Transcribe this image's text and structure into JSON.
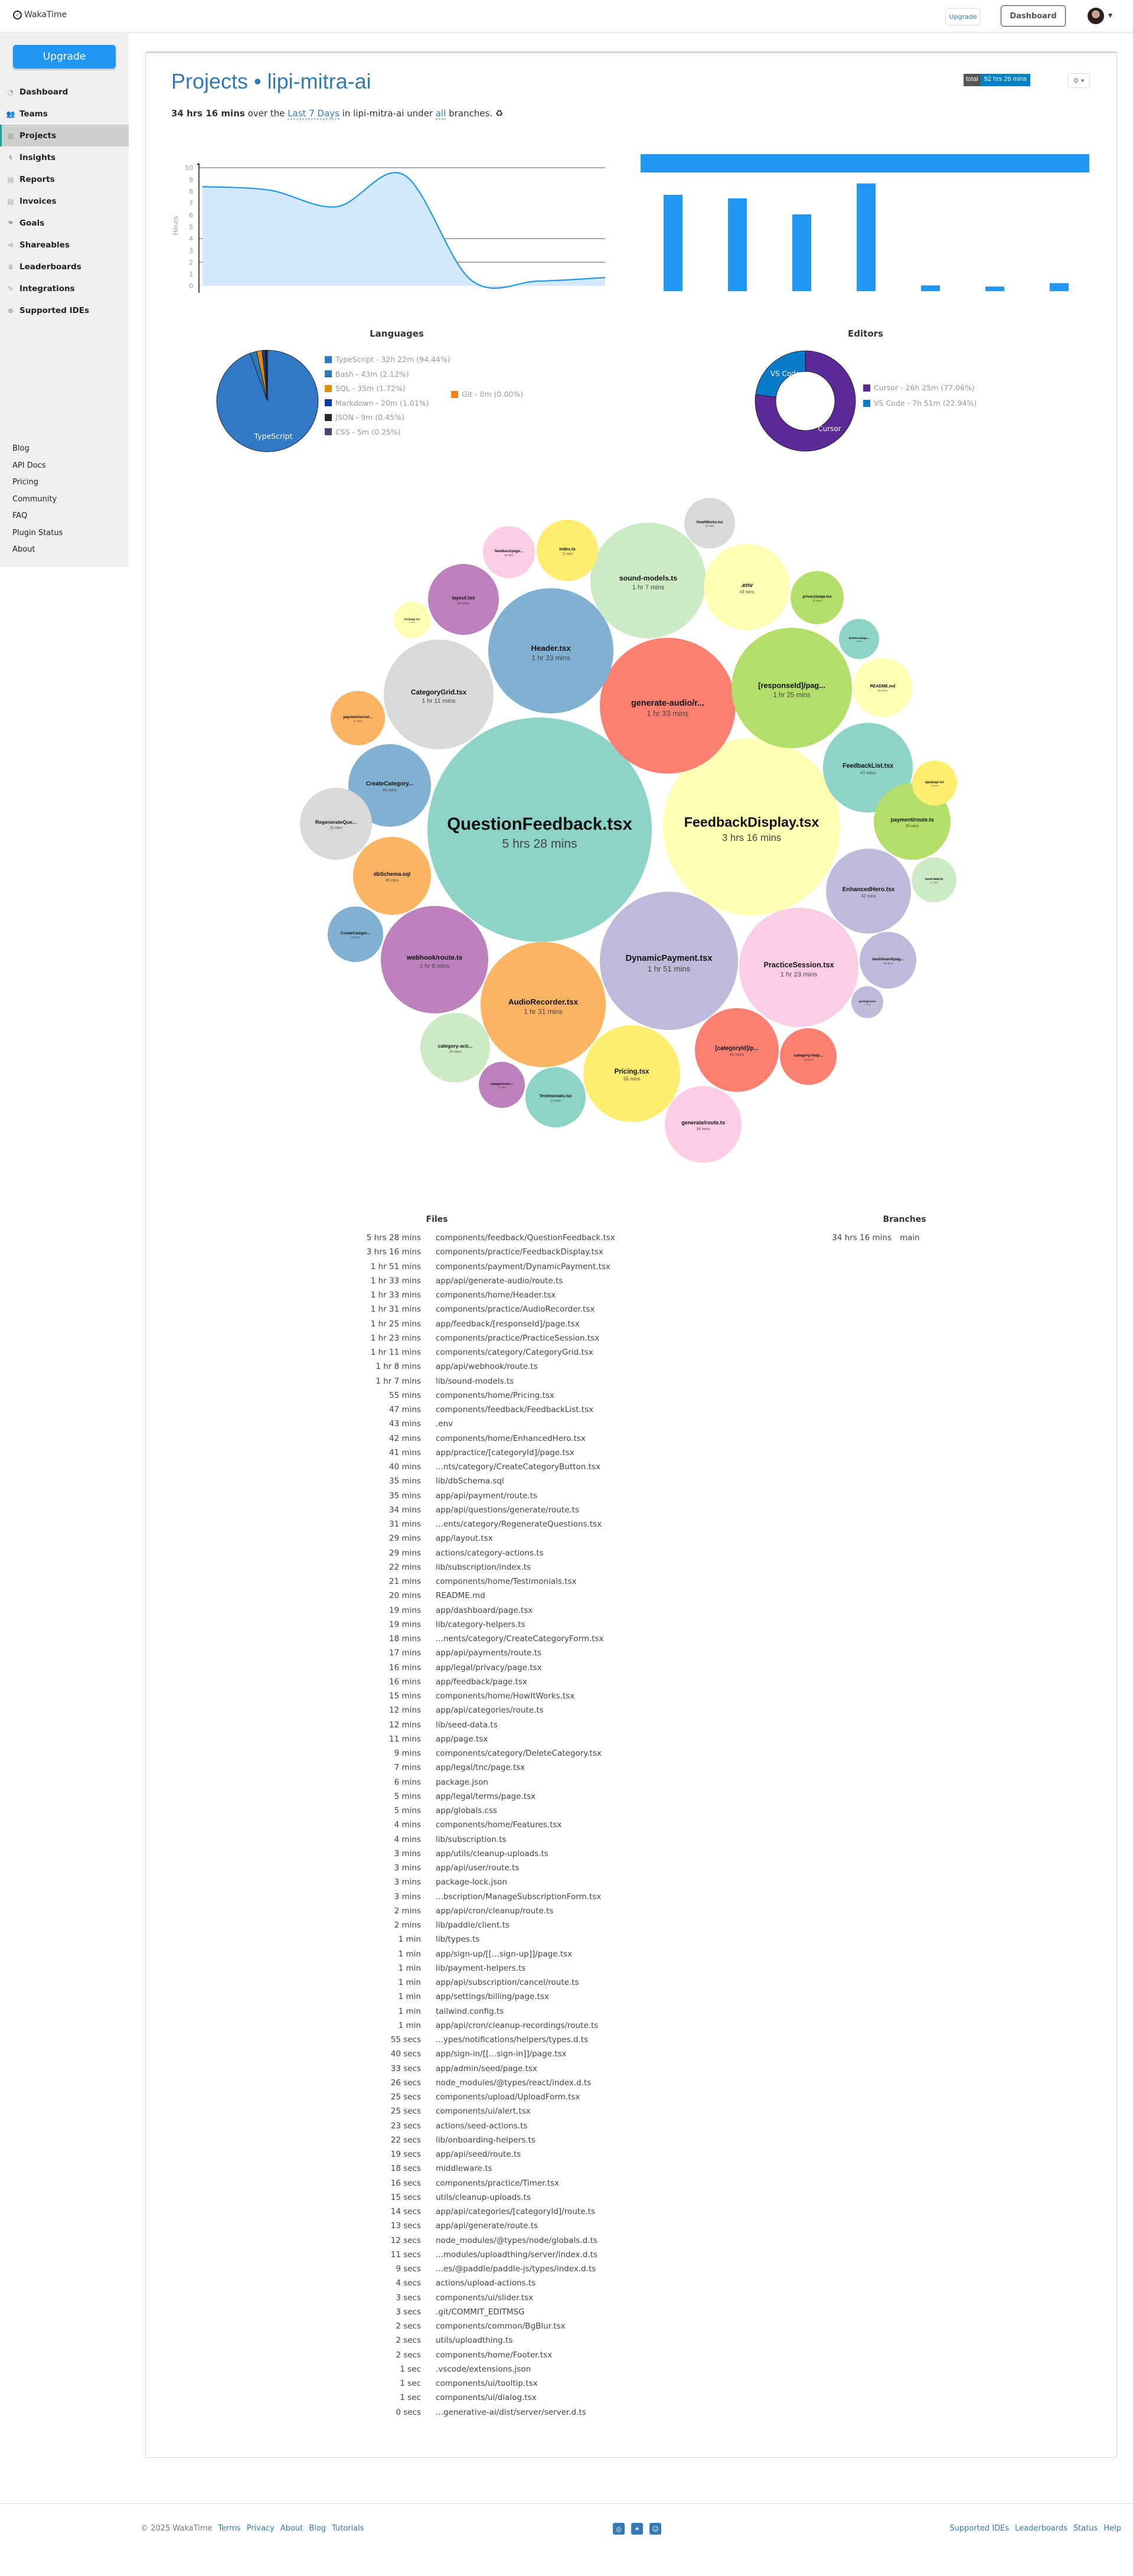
{
  "header": {
    "logo": "WakaTime",
    "upgrade": "Upgrade",
    "dashboard": "Dashboard"
  },
  "sidebar": {
    "upgrade": "Upgrade",
    "items": [
      {
        "label": "Dashboard",
        "icon": "dashboard-icon",
        "glyph": "◔"
      },
      {
        "label": "Teams",
        "icon": "users-icon",
        "glyph": "👥"
      },
      {
        "label": "Projects",
        "icon": "grid-icon",
        "glyph": "▦",
        "active": true
      },
      {
        "label": "Insights",
        "icon": "bolt-icon",
        "glyph": "ϟ"
      },
      {
        "label": "Reports",
        "icon": "pdf-icon",
        "glyph": "▤"
      },
      {
        "label": "Invoices",
        "icon": "file-icon",
        "glyph": "▤"
      },
      {
        "label": "Goals",
        "icon": "flag-icon",
        "glyph": "⚑"
      },
      {
        "label": "Shareables",
        "icon": "share-icon",
        "glyph": "⋖"
      },
      {
        "label": "Leaderboards",
        "icon": "trophy-icon",
        "glyph": "♛"
      },
      {
        "label": "Integrations",
        "icon": "wrench-icon",
        "glyph": "✎"
      },
      {
        "label": "Supported IDEs",
        "icon": "plus-circle-icon",
        "glyph": "⊕"
      }
    ],
    "links": [
      "Blog",
      "API Docs",
      "Pricing",
      "Community",
      "FAQ",
      "Plugin Status",
      "About"
    ]
  },
  "page": {
    "title": "Projects • lipi-mitra-ai",
    "total_label": "total",
    "total_value": "92 hrs 26 mins",
    "summary_time": "34 hrs 16 mins",
    "summary_pre": " over the ",
    "summary_range": "Last 7 Days",
    "summary_mid": " in lipi-mitra-ai under ",
    "summary_branches": "all",
    "summary_post": " branches. ♻"
  },
  "chart_data": [
    {
      "type": "area",
      "ylabel": "Hours",
      "ylim": [
        0,
        10
      ],
      "yticks": [
        0,
        1,
        2,
        3,
        4,
        5,
        6,
        7,
        8,
        9,
        10
      ],
      "gridlines": [
        10,
        4,
        2
      ],
      "values": [
        8.4,
        8.1,
        6.7,
        9.4,
        0.5,
        0.4,
        0.7
      ],
      "color": "#2196f3",
      "fill": "#d1e9fb"
    },
    {
      "type": "bar",
      "values": [
        8.4,
        8.1,
        6.7,
        9.4,
        0.5,
        0.4,
        0.7
      ],
      "color": "#2196f3"
    },
    {
      "type": "pie",
      "title": "Languages",
      "slice_label": "TypeScript",
      "slices": [
        {
          "name": "TypeScript",
          "legend": "TypeScript - 32h 22m (94.44%)",
          "value": 94.44,
          "color": "#3178c6"
        },
        {
          "name": "Bash",
          "legend": "Bash - 43m (2.12%)",
          "value": 2.12,
          "color": "#2a7ab9"
        },
        {
          "name": "SQL",
          "legend": "SQL - 35m (1.72%)",
          "value": 1.72,
          "color": "#e38c00"
        },
        {
          "name": "Markdown",
          "legend": "Markdown - 20m (1.01%)",
          "value": 1.01,
          "color": "#083fa1"
        },
        {
          "name": "JSON",
          "legend": "JSON - 9m (0.45%)",
          "value": 0.45,
          "color": "#292929"
        },
        {
          "name": "CSS",
          "legend": "CSS - 5m (0.25%)",
          "value": 0.25,
          "color": "#563d7c"
        },
        {
          "name": "Git",
          "legend": "Git - 0m (0.00%)",
          "value": 0,
          "color": "#fd7e14"
        }
      ]
    },
    {
      "type": "donut",
      "title": "Editors",
      "slices": [
        {
          "name": "Cursor",
          "legend": "Cursor - 26h 25m (77.06%)",
          "value": 77.06,
          "color": "#5a2a96"
        },
        {
          "name": "VS Code",
          "legend": "VS Code - 7h 51m (22.94%)",
          "value": 22.94,
          "color": "#0a7acb"
        }
      ]
    },
    {
      "type": "bubble",
      "palette": [
        "#8dd3c7",
        "#ffffb3",
        "#bebada",
        "#fb8072",
        "#80b1d3",
        "#fdb462",
        "#b3de69",
        "#fccde5",
        "#d9d9d9",
        "#bc80bd",
        "#ccebc5",
        "#ffed6f"
      ],
      "bubbles": [
        {
          "label": "QuestionFeedback.tsx",
          "time": "5 hrs 28 mins"
        },
        {
          "label": "FeedbackDisplay.tsx",
          "time": "3 hrs 16 mins"
        },
        {
          "label": "DynamicPayment.tsx",
          "time": "1 hr 51 mins"
        },
        {
          "label": "generate-audio/r...",
          "time": "1 hr 33 mins"
        },
        {
          "label": "Header.tsx",
          "time": "1 hr 33 mins"
        },
        {
          "label": "AudioRecorder.tsx",
          "time": "1 hr 31 mins"
        },
        {
          "label": "[responseId]/pag...",
          "time": "1 hr 25 mins"
        },
        {
          "label": "PracticeSession.tsx",
          "time": "1 hr 23 mins"
        },
        {
          "label": "CategoryGrid.tsx",
          "time": "1 hr 11 mins"
        },
        {
          "label": "webhook/route.ts",
          "time": "1 hr 8 mins"
        },
        {
          "label": "sound-models.ts",
          "time": "1 hr 7 mins"
        },
        {
          "label": "Pricing.tsx",
          "time": "55 mins"
        },
        {
          "label": "FeedbackList.tsx",
          "time": "47 mins"
        },
        {
          "label": ".env",
          "time": "43 mins"
        },
        {
          "label": "EnhancedHero.tsx",
          "time": "42 mins"
        },
        {
          "label": "[categoryId]/p...",
          "time": "41 mins"
        },
        {
          "label": "CreateCategory...",
          "time": "40 mins"
        },
        {
          "label": "dbSchema.sql",
          "time": "35 mins"
        },
        {
          "label": "payment/route.ts",
          "time": "35 mins"
        },
        {
          "label": "generate/route.ts",
          "time": "34 mins"
        },
        {
          "label": "RegenerateQue...",
          "time": "31 mins"
        },
        {
          "label": "layout.tsx",
          "time": "29 mins"
        },
        {
          "label": "category-acti...",
          "time": "29 mins"
        },
        {
          "label": "index.ts",
          "time": "22 mins"
        },
        {
          "label": "Testimonials.tsx",
          "time": "21 mins"
        },
        {
          "label": "README.md",
          "time": "20 mins"
        },
        {
          "label": "dashboard/pag...",
          "time": "19 mins"
        },
        {
          "label": "category-help...",
          "time": "19 mins"
        },
        {
          "label": "CreateCategor...",
          "time": "18 mins"
        },
        {
          "label": "payments/rout...",
          "time": "17 mins"
        },
        {
          "label": "privacy/page.tsx",
          "time": "16 mins"
        },
        {
          "label": "feedback/page...",
          "time": "16 mins"
        },
        {
          "label": "HowItWorks.tsx",
          "time": "15 mins"
        },
        {
          "label": "categories/ro...",
          "time": "12 mins"
        },
        {
          "label": "seed-data.ts",
          "time": "12 mins"
        },
        {
          "label": "app/page.tsx",
          "time": "11 mins"
        },
        {
          "label": "DeleteCatego...",
          "time": "9 mins"
        },
        {
          "label": "tnc/page.tsx",
          "time": "7 mins"
        },
        {
          "label": "package.json",
          "time": "6 mins"
        }
      ]
    }
  ],
  "files": {
    "title": "Files",
    "rows": [
      [
        "5 hrs 28 mins",
        "components/feedback/QuestionFeedback.tsx"
      ],
      [
        "3 hrs 16 mins",
        "components/practice/FeedbackDisplay.tsx"
      ],
      [
        "1 hr 51 mins",
        "components/payment/DynamicPayment.tsx"
      ],
      [
        "1 hr 33 mins",
        "app/api/generate-audio/route.ts"
      ],
      [
        "1 hr 33 mins",
        "components/home/Header.tsx"
      ],
      [
        "1 hr 31 mins",
        "components/practice/AudioRecorder.tsx"
      ],
      [
        "1 hr 25 mins",
        "app/feedback/[responseId]/page.tsx"
      ],
      [
        "1 hr 23 mins",
        "components/practice/PracticeSession.tsx"
      ],
      [
        "1 hr 11 mins",
        "components/category/CategoryGrid.tsx"
      ],
      [
        "1 hr 8 mins",
        "app/api/webhook/route.ts"
      ],
      [
        "1 hr 7 mins",
        "lib/sound-models.ts"
      ],
      [
        "55 mins",
        "components/home/Pricing.tsx"
      ],
      [
        "47 mins",
        "components/feedback/FeedbackList.tsx"
      ],
      [
        "43 mins",
        ".env"
      ],
      [
        "42 mins",
        "components/home/EnhancedHero.tsx"
      ],
      [
        "41 mins",
        "app/practice/[categoryId]/page.tsx"
      ],
      [
        "40 mins",
        "...nts/category/CreateCategoryButton.tsx"
      ],
      [
        "35 mins",
        "lib/dbSchema.sql"
      ],
      [
        "35 mins",
        "app/api/payment/route.ts"
      ],
      [
        "34 mins",
        "app/api/questions/generate/route.ts"
      ],
      [
        "31 mins",
        "...ents/category/RegenerateQuestions.tsx"
      ],
      [
        "29 mins",
        "app/layout.tsx"
      ],
      [
        "29 mins",
        "actions/category-actions.ts"
      ],
      [
        "22 mins",
        "lib/subscription/index.ts"
      ],
      [
        "21 mins",
        "components/home/Testimonials.tsx"
      ],
      [
        "20 mins",
        "README.md"
      ],
      [
        "19 mins",
        "app/dashboard/page.tsx"
      ],
      [
        "19 mins",
        "lib/category-helpers.ts"
      ],
      [
        "18 mins",
        "...nents/category/CreateCategoryForm.tsx"
      ],
      [
        "17 mins",
        "app/api/payments/route.ts"
      ],
      [
        "16 mins",
        "app/legal/privacy/page.tsx"
      ],
      [
        "16 mins",
        "app/feedback/page.tsx"
      ],
      [
        "15 mins",
        "components/home/HowItWorks.tsx"
      ],
      [
        "12 mins",
        "app/api/categories/route.ts"
      ],
      [
        "12 mins",
        "lib/seed-data.ts"
      ],
      [
        "11 mins",
        "app/page.tsx"
      ],
      [
        "9 mins",
        "components/category/DeleteCategory.tsx"
      ],
      [
        "7 mins",
        "app/legal/tnc/page.tsx"
      ],
      [
        "6 mins",
        "package.json"
      ],
      [
        "5 mins",
        "app/legal/terms/page.tsx"
      ],
      [
        "5 mins",
        "app/globals.css"
      ],
      [
        "4 mins",
        "components/home/Features.tsx"
      ],
      [
        "4 mins",
        "lib/subscription.ts"
      ],
      [
        "3 mins",
        "app/utils/cleanup-uploads.ts"
      ],
      [
        "3 mins",
        "app/api/user/route.ts"
      ],
      [
        "3 mins",
        "package-lock.json"
      ],
      [
        "3 mins",
        "...bscription/ManageSubscriptionForm.tsx"
      ],
      [
        "2 mins",
        "app/api/cron/cleanup/route.ts"
      ],
      [
        "2 mins",
        "lib/paddle/client.ts"
      ],
      [
        "1 min",
        "lib/types.ts"
      ],
      [
        "1 min",
        "app/sign-up/[[...sign-up]]/page.tsx"
      ],
      [
        "1 min",
        "lib/payment-helpers.ts"
      ],
      [
        "1 min",
        "app/api/subscription/cancel/route.ts"
      ],
      [
        "1 min",
        "app/settings/billing/page.tsx"
      ],
      [
        "1 min",
        "tailwind.config.ts"
      ],
      [
        "1 min",
        "app/api/cron/cleanup-recordings/route.ts"
      ],
      [
        "55 secs",
        "...ypes/notifications/helpers/types.d.ts"
      ],
      [
        "40 secs",
        "app/sign-in/[[...sign-in]]/page.tsx"
      ],
      [
        "33 secs",
        "app/admin/seed/page.tsx"
      ],
      [
        "26 secs",
        "node_modules/@types/react/index.d.ts"
      ],
      [
        "25 secs",
        "components/upload/UploadForm.tsx"
      ],
      [
        "25 secs",
        "components/ui/alert.tsx"
      ],
      [
        "23 secs",
        "actions/seed-actions.ts"
      ],
      [
        "22 secs",
        "lib/onboarding-helpers.ts"
      ],
      [
        "19 secs",
        "app/api/seed/route.ts"
      ],
      [
        "18 secs",
        "middleware.ts"
      ],
      [
        "16 secs",
        "components/practice/Timer.tsx"
      ],
      [
        "15 secs",
        "utils/cleanup-uploads.ts"
      ],
      [
        "14 secs",
        "app/api/categories/[categoryId]/route.ts"
      ],
      [
        "13 secs",
        "app/api/generate/route.ts"
      ],
      [
        "12 secs",
        "node_modules/@types/node/globals.d.ts"
      ],
      [
        "11 secs",
        "...modules/uploadthing/server/index.d.ts"
      ],
      [
        "9 secs",
        "...es/@paddle/paddle-js/types/index.d.ts"
      ],
      [
        "4 secs",
        "actions/upload-actions.ts"
      ],
      [
        "3 secs",
        "components/ui/slider.tsx"
      ],
      [
        "3 secs",
        ".git/COMMIT_EDITMSG"
      ],
      [
        "2 secs",
        "components/common/BgBlur.tsx"
      ],
      [
        "2 secs",
        "utils/uploadthing.ts"
      ],
      [
        "2 secs",
        "components/home/Footer.tsx"
      ],
      [
        "1 sec",
        ".vscode/extensions.json"
      ],
      [
        "1 sec",
        "components/ui/tooltip.tsx"
      ],
      [
        "1 sec",
        "components/ui/dialog.tsx"
      ],
      [
        "0 secs",
        "...generative-ai/dist/server/server.d.ts"
      ]
    ]
  },
  "branches": {
    "title": "Branches",
    "rows": [
      [
        "34 hrs 16 mins",
        "main"
      ]
    ]
  },
  "footer": {
    "copyright": "© 2025 WakaTime",
    "left_links": [
      "Terms",
      "Privacy",
      "About",
      "Blog",
      "Tutorials"
    ],
    "social": [
      "github-icon",
      "twitter-icon",
      "reddit-icon"
    ],
    "right_links": [
      "Supported IDEs",
      "Leaderboards",
      "Status",
      "Help"
    ]
  }
}
